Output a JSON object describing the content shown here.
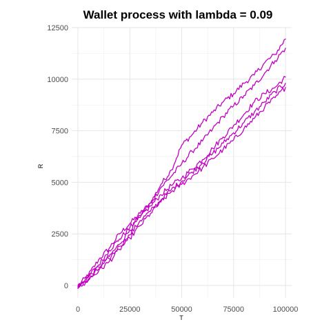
{
  "chart_data": {
    "type": "line",
    "title": "Wallet process with lambda =  0.09",
    "xlabel": "T",
    "ylabel": "R",
    "xlim": [
      -3000,
      103000
    ],
    "ylim": [
      -600,
      12500
    ],
    "x_ticks": [
      0,
      25000,
      50000,
      75000,
      100000
    ],
    "x_tick_labels": [
      "0",
      "25000",
      "50000",
      "75000",
      "100000"
    ],
    "y_ticks": [
      0,
      2500,
      5000,
      7500,
      10000,
      12500
    ],
    "y_tick_labels": [
      "0",
      "2500",
      "5000",
      "7500",
      "10000",
      "12500"
    ],
    "grid": true,
    "legend": "none",
    "line_color": "#C000C0",
    "series": [
      {
        "x": [
          0,
          5000,
          10000,
          15000,
          20000,
          25000,
          30000,
          35000,
          40000,
          45000,
          50000,
          55000,
          60000,
          65000,
          70000,
          75000,
          80000,
          85000,
          90000,
          95000,
          100000
        ],
        "values": [
          0,
          500,
          1250,
          1800,
          2500,
          3000,
          3500,
          4000,
          4900,
          5600,
          6800,
          7300,
          7900,
          8400,
          8900,
          9300,
          9800,
          10200,
          10800,
          11200,
          11950
        ]
      },
      {
        "x": [
          0,
          5000,
          10000,
          15000,
          20000,
          25000,
          30000,
          35000,
          40000,
          45000,
          50000,
          55000,
          60000,
          65000,
          70000,
          75000,
          80000,
          85000,
          90000,
          95000,
          100000
        ],
        "values": [
          0,
          450,
          1000,
          1700,
          2250,
          2800,
          3400,
          4000,
          4750,
          5300,
          5900,
          6500,
          7000,
          7600,
          8200,
          8700,
          9200,
          9700,
          10300,
          10900,
          11500
        ]
      },
      {
        "x": [
          0,
          5000,
          10000,
          15000,
          20000,
          25000,
          30000,
          35000,
          40000,
          45000,
          50000,
          55000,
          60000,
          65000,
          70000,
          75000,
          80000,
          85000,
          90000,
          95000,
          100000
        ],
        "values": [
          -100,
          400,
          900,
          1400,
          2000,
          2700,
          3300,
          3850,
          4400,
          4850,
          5200,
          5650,
          6100,
          6650,
          7200,
          7750,
          8300,
          8900,
          9300,
          9600,
          10100
        ]
      },
      {
        "x": [
          0,
          5000,
          10000,
          15000,
          20000,
          25000,
          30000,
          35000,
          40000,
          45000,
          50000,
          55000,
          60000,
          65000,
          70000,
          75000,
          80000,
          85000,
          90000,
          95000,
          100000
        ],
        "values": [
          -150,
          250,
          800,
          1300,
          1900,
          2450,
          3150,
          3600,
          4150,
          4650,
          5050,
          5500,
          5950,
          6400,
          6900,
          7400,
          7900,
          8400,
          8900,
          9400,
          9800
        ]
      },
      {
        "x": [
          0,
          5000,
          10000,
          15000,
          20000,
          25000,
          30000,
          35000,
          40000,
          45000,
          50000,
          55000,
          60000,
          65000,
          70000,
          75000,
          80000,
          85000,
          90000,
          95000,
          100000
        ],
        "values": [
          -50,
          300,
          700,
          1150,
          1750,
          2300,
          2900,
          3500,
          4050,
          4550,
          4900,
          5300,
          5700,
          6150,
          6600,
          7050,
          7600,
          8100,
          8650,
          9100,
          9600
        ]
      }
    ]
  }
}
